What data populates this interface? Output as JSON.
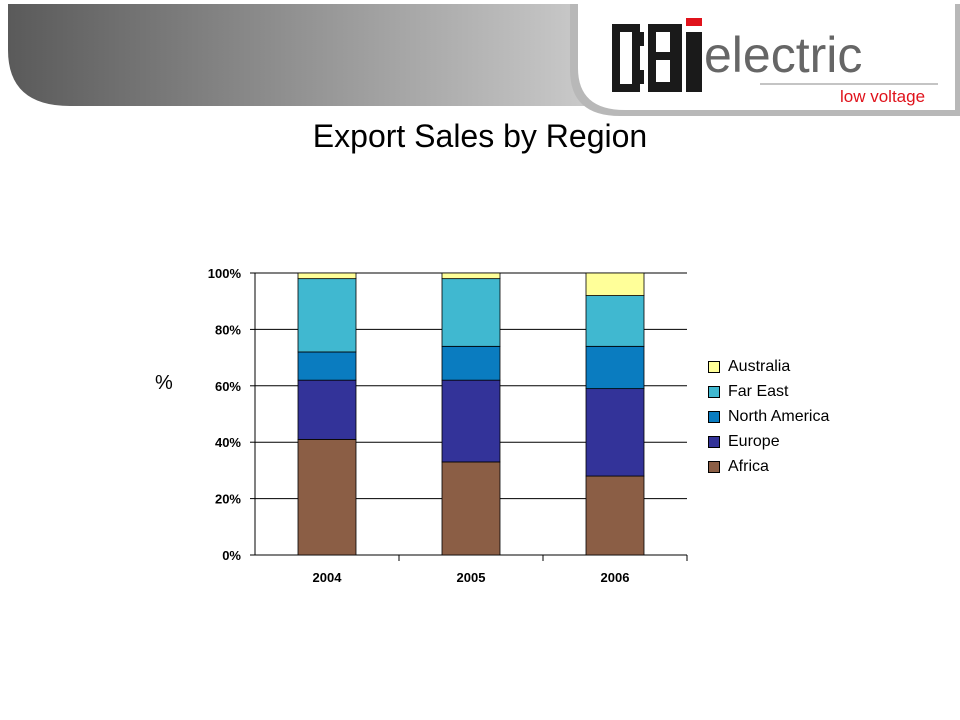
{
  "title": "Export Sales by Region",
  "logo": {
    "brand_letters": "CBi",
    "word": "electric",
    "tagline": "low voltage"
  },
  "colors": {
    "Australia": "#FFFF99",
    "Far East": "#40B8D0",
    "North America": "#0A7CC0",
    "Europe": "#333399",
    "Africa": "#8B5E45",
    "brand_red": "#E0121B"
  },
  "chart_data": {
    "type": "bar",
    "stacked": true,
    "categories": [
      "2004",
      "2005",
      "2006"
    ],
    "ylabel": "%",
    "ylim": [
      0,
      100
    ],
    "yticks": [
      "0%",
      "20%",
      "40%",
      "60%",
      "80%",
      "100%"
    ],
    "grid": true,
    "legend_position": "right",
    "series": [
      {
        "name": "Africa",
        "values": [
          41,
          33,
          28
        ]
      },
      {
        "name": "Europe",
        "values": [
          21,
          29,
          31
        ]
      },
      {
        "name": "North America",
        "values": [
          10,
          12,
          15
        ]
      },
      {
        "name": "Far East",
        "values": [
          26,
          24,
          18
        ]
      },
      {
        "name": "Australia",
        "values": [
          2,
          2,
          8
        ]
      }
    ],
    "legend_order": [
      "Australia",
      "Far East",
      "North America",
      "Europe",
      "Africa"
    ]
  }
}
